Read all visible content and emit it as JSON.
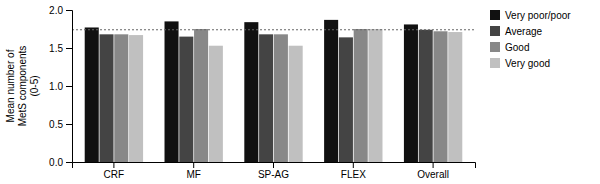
{
  "chart_data": {
    "type": "bar",
    "categories": [
      "CRF",
      "MF",
      "SP-AG",
      "FLEX",
      "Overall"
    ],
    "series": [
      {
        "name": "Very poor/poor",
        "color": "#111111",
        "values": [
          1.77,
          1.85,
          1.84,
          1.87,
          1.81
        ]
      },
      {
        "name": "Average",
        "color": "#444444",
        "values": [
          1.68,
          1.65,
          1.68,
          1.64,
          1.74
        ]
      },
      {
        "name": "Good",
        "color": "#888888",
        "values": [
          1.68,
          1.75,
          1.68,
          1.75,
          1.72
        ]
      },
      {
        "name": "Very good",
        "color": "#c0c0c0",
        "values": [
          1.67,
          1.53,
          1.53,
          1.75,
          1.71
        ]
      }
    ],
    "y_label": "Mean number of\nMetS components\n(0-5)",
    "ylim": [
      0.0,
      2.0
    ],
    "yticks": [
      {
        "value": 0.0,
        "label": "0.0"
      },
      0.5,
      {
        "value": 1.0,
        "label": "1.0"
      },
      1.5,
      {
        "value": 2.0,
        "label": "2.0"
      }
    ],
    "reference_line": 1.74,
    "grid": false,
    "legend": "right"
  }
}
